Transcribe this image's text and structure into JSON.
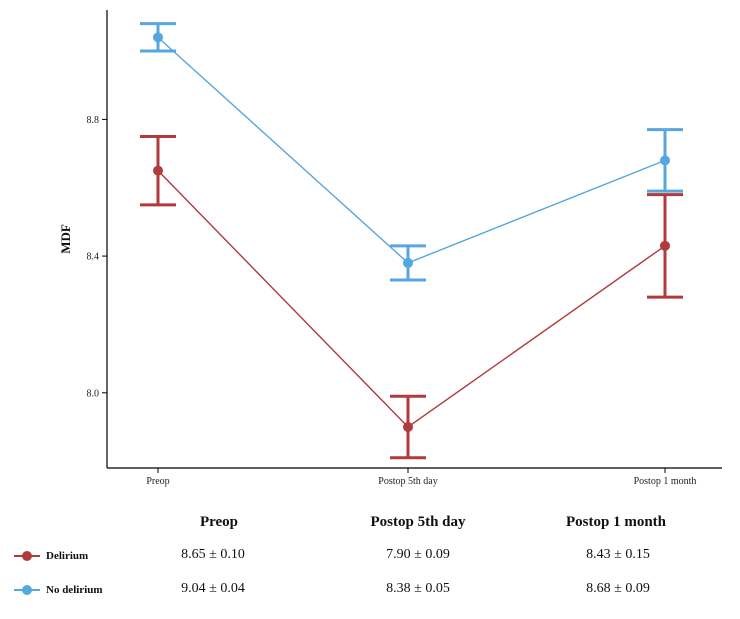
{
  "chart_data": {
    "type": "line",
    "ylabel": "MDF",
    "xlabel": "",
    "categories": [
      "Preop",
      "Postop 5th day",
      "Postop 1 month"
    ],
    "yticks": [
      8.0,
      8.4,
      8.8
    ],
    "ylim": [
      7.78,
      9.12
    ],
    "series": [
      {
        "name": "No delirium",
        "color": "#56a6df",
        "values": [
          9.04,
          8.38,
          8.68
        ],
        "errors": [
          0.04,
          0.05,
          0.09
        ],
        "labels": [
          "9.04 ± 0.04",
          "8.38 ± 0.05",
          "8.68 ± 0.09"
        ]
      },
      {
        "name": "Delirium",
        "color": "#b03a3c",
        "values": [
          8.65,
          7.9,
          8.43
        ],
        "errors": [
          0.1,
          0.09,
          0.15
        ],
        "labels": [
          "8.65 ± 0.10",
          "7.90 ± 0.09",
          "8.43 ± 0.15"
        ]
      }
    ]
  },
  "table": {
    "headers": [
      "Preop",
      "Postop 5th day",
      "Postop 1 month"
    ],
    "rows": [
      {
        "label": "Delirium",
        "color": "#b03a3c",
        "values": [
          "8.65 ± 0.10",
          "7.90 ± 0.09",
          "8.43 ± 0.15"
        ]
      },
      {
        "label": "No delirium",
        "color": "#56a6df",
        "values": [
          "9.04 ± 0.04",
          "8.38 ± 0.05",
          "8.68 ± 0.09"
        ]
      }
    ]
  }
}
